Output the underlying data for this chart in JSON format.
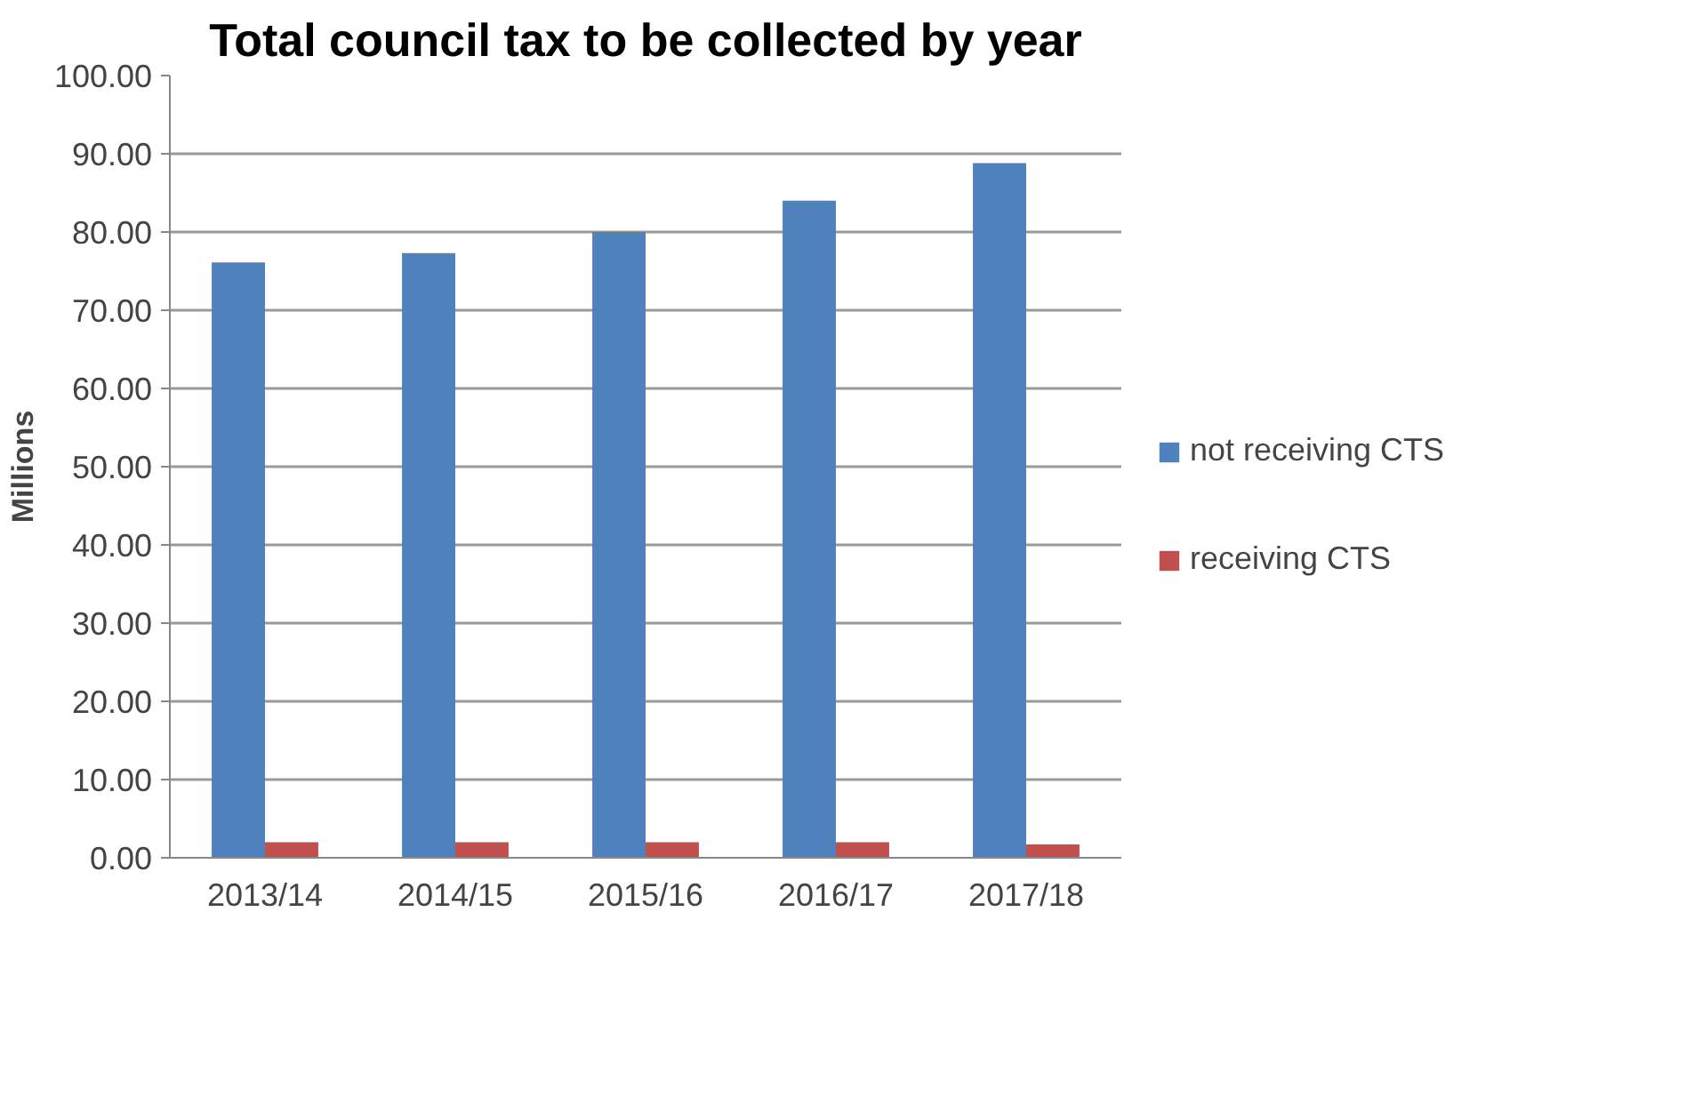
{
  "chart_data": {
    "type": "bar",
    "title": "Total council tax to be collected by year",
    "ylabel": "Millions",
    "categories": [
      "2013/14",
      "2014/15",
      "2015/16",
      "2016/17",
      "2017/18"
    ],
    "series": [
      {
        "name": "not receiving CTS",
        "color": "#4f81bd",
        "values": [
          76.1,
          77.3,
          80.0,
          84.0,
          88.8
        ]
      },
      {
        "name": "receiving CTS",
        "color": "#c0504d",
        "values": [
          2.0,
          2.0,
          2.0,
          2.0,
          1.7
        ]
      }
    ],
    "ylim": [
      0,
      100
    ],
    "yticks": [
      {
        "value": 0,
        "label": "0.00"
      },
      {
        "value": 10,
        "label": "10.00"
      },
      {
        "value": 20,
        "label": "20.00"
      },
      {
        "value": 30,
        "label": "30.00"
      },
      {
        "value": 40,
        "label": "40.00"
      },
      {
        "value": 50,
        "label": "50.00"
      },
      {
        "value": 60,
        "label": "60.00"
      },
      {
        "value": 70,
        "label": "70.00"
      },
      {
        "value": 80,
        "label": "80.00"
      },
      {
        "value": 90,
        "label": "90.00"
      },
      {
        "value": 100,
        "label": "100.00"
      }
    ],
    "grid": "y",
    "legend": "right"
  }
}
